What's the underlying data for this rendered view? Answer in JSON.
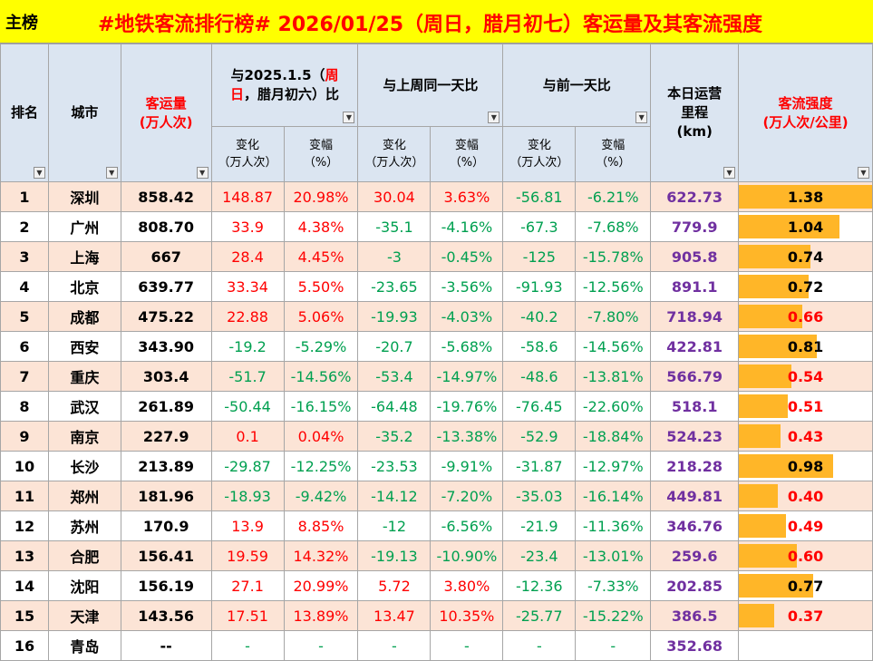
{
  "header": {
    "sheet_tab": "主榜",
    "title": "#地铁客流排行榜# 2026/01/25（周日，腊月初七）客运量及其客流强度"
  },
  "columns": {
    "rank": "排名",
    "city": "城市",
    "pax_line1": "客运量",
    "pax_line2": "(万人次)",
    "yoy_line1_a": "与2025.1.5（",
    "yoy_line1_b": "周",
    "yoy_line2_a": "日",
    "yoy_line2_b": "，腊月初六）比",
    "wow": "与上周同一天比",
    "dod": "与前一天比",
    "km_line1": "本日运营",
    "km_line2": "里程",
    "km_line3": "(km)",
    "intensity_line1": "客流强度",
    "intensity_line2": "(万人次/公里)",
    "change_line1": "变化",
    "change_line2": "（万人次）",
    "pct_line1": "变幅",
    "pct_line2": "（%）"
  },
  "colors": {
    "title_bar": "#ffff00",
    "title_text": "#ff0000",
    "header_bg": "#dbe5f1",
    "row_odd": "#fce4d6",
    "row_even": "#ffffff",
    "positive": "#ff0000",
    "negative": "#00a050",
    "mileage": "#7030a0",
    "intensity_bar": "#ffb628"
  },
  "intensity_bar_max": 1.38,
  "rows": [
    {
      "rank": "1",
      "city": "深圳",
      "pax": "858.42",
      "yoy_chg": "148.87",
      "yoy_pct": "20.98%",
      "wow_chg": "30.04",
      "wow_pct": "3.63%",
      "dod_chg": "-56.81",
      "dod_pct": "-6.21%",
      "km": "622.73",
      "intensity": "1.38",
      "intensity_red": false
    },
    {
      "rank": "2",
      "city": "广州",
      "pax": "808.70",
      "yoy_chg": "33.9",
      "yoy_pct": "4.38%",
      "wow_chg": "-35.1",
      "wow_pct": "-4.16%",
      "dod_chg": "-67.3",
      "dod_pct": "-7.68%",
      "km": "779.9",
      "intensity": "1.04",
      "intensity_red": false
    },
    {
      "rank": "3",
      "city": "上海",
      "pax": "667",
      "yoy_chg": "28.4",
      "yoy_pct": "4.45%",
      "wow_chg": "-3",
      "wow_pct": "-0.45%",
      "dod_chg": "-125",
      "dod_pct": "-15.78%",
      "km": "905.8",
      "intensity": "0.74",
      "intensity_red": false
    },
    {
      "rank": "4",
      "city": "北京",
      "pax": "639.77",
      "yoy_chg": "33.34",
      "yoy_pct": "5.50%",
      "wow_chg": "-23.65",
      "wow_pct": "-3.56%",
      "dod_chg": "-91.93",
      "dod_pct": "-12.56%",
      "km": "891.1",
      "intensity": "0.72",
      "intensity_red": false
    },
    {
      "rank": "5",
      "city": "成都",
      "pax": "475.22",
      "yoy_chg": "22.88",
      "yoy_pct": "5.06%",
      "wow_chg": "-19.93",
      "wow_pct": "-4.03%",
      "dod_chg": "-40.2",
      "dod_pct": "-7.80%",
      "km": "718.94",
      "intensity": "0.66",
      "intensity_red": true
    },
    {
      "rank": "6",
      "city": "西安",
      "pax": "343.90",
      "yoy_chg": "-19.2",
      "yoy_pct": "-5.29%",
      "wow_chg": "-20.7",
      "wow_pct": "-5.68%",
      "dod_chg": "-58.6",
      "dod_pct": "-14.56%",
      "km": "422.81",
      "intensity": "0.81",
      "intensity_red": false
    },
    {
      "rank": "7",
      "city": "重庆",
      "pax": "303.4",
      "yoy_chg": "-51.7",
      "yoy_pct": "-14.56%",
      "wow_chg": "-53.4",
      "wow_pct": "-14.97%",
      "dod_chg": "-48.6",
      "dod_pct": "-13.81%",
      "km": "566.79",
      "intensity": "0.54",
      "intensity_red": true
    },
    {
      "rank": "8",
      "city": "武汉",
      "pax": "261.89",
      "yoy_chg": "-50.44",
      "yoy_pct": "-16.15%",
      "wow_chg": "-64.48",
      "wow_pct": "-19.76%",
      "dod_chg": "-76.45",
      "dod_pct": "-22.60%",
      "km": "518.1",
      "intensity": "0.51",
      "intensity_red": true
    },
    {
      "rank": "9",
      "city": "南京",
      "pax": "227.9",
      "yoy_chg": "0.1",
      "yoy_pct": "0.04%",
      "wow_chg": "-35.2",
      "wow_pct": "-13.38%",
      "dod_chg": "-52.9",
      "dod_pct": "-18.84%",
      "km": "524.23",
      "intensity": "0.43",
      "intensity_red": true
    },
    {
      "rank": "10",
      "city": "长沙",
      "pax": "213.89",
      "yoy_chg": "-29.87",
      "yoy_pct": "-12.25%",
      "wow_chg": "-23.53",
      "wow_pct": "-9.91%",
      "dod_chg": "-31.87",
      "dod_pct": "-12.97%",
      "km": "218.28",
      "intensity": "0.98",
      "intensity_red": false
    },
    {
      "rank": "11",
      "city": "郑州",
      "pax": "181.96",
      "yoy_chg": "-18.93",
      "yoy_pct": "-9.42%",
      "wow_chg": "-14.12",
      "wow_pct": "-7.20%",
      "dod_chg": "-35.03",
      "dod_pct": "-16.14%",
      "km": "449.81",
      "intensity": "0.40",
      "intensity_red": true
    },
    {
      "rank": "12",
      "city": "苏州",
      "pax": "170.9",
      "yoy_chg": "13.9",
      "yoy_pct": "8.85%",
      "wow_chg": "-12",
      "wow_pct": "-6.56%",
      "dod_chg": "-21.9",
      "dod_pct": "-11.36%",
      "km": "346.76",
      "intensity": "0.49",
      "intensity_red": true
    },
    {
      "rank": "13",
      "city": "合肥",
      "pax": "156.41",
      "yoy_chg": "19.59",
      "yoy_pct": "14.32%",
      "wow_chg": "-19.13",
      "wow_pct": "-10.90%",
      "dod_chg": "-23.4",
      "dod_pct": "-13.01%",
      "km": "259.6",
      "intensity": "0.60",
      "intensity_red": true
    },
    {
      "rank": "14",
      "city": "沈阳",
      "pax": "156.19",
      "yoy_chg": "27.1",
      "yoy_pct": "20.99%",
      "wow_chg": "5.72",
      "wow_pct": "3.80%",
      "dod_chg": "-12.36",
      "dod_pct": "-7.33%",
      "km": "202.85",
      "intensity": "0.77",
      "intensity_red": false
    },
    {
      "rank": "15",
      "city": "天津",
      "pax": "143.56",
      "yoy_chg": "17.51",
      "yoy_pct": "13.89%",
      "wow_chg": "13.47",
      "wow_pct": "10.35%",
      "dod_chg": "-25.77",
      "dod_pct": "-15.22%",
      "km": "386.5",
      "intensity": "0.37",
      "intensity_red": true
    },
    {
      "rank": "16",
      "city": "青岛",
      "pax": "--",
      "yoy_chg": "-",
      "yoy_pct": "-",
      "wow_chg": "-",
      "wow_pct": "-",
      "dod_chg": "-",
      "dod_pct": "-",
      "km": "352.68",
      "intensity": "",
      "intensity_red": false
    }
  ]
}
